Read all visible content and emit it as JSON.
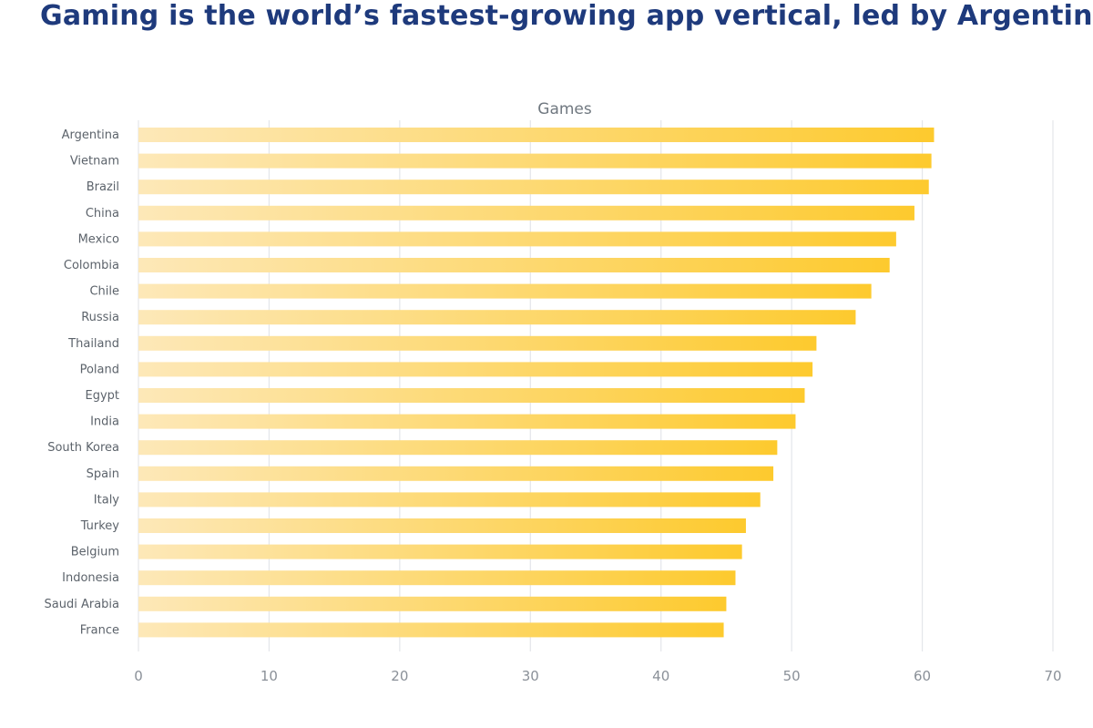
{
  "headline": "Gaming is the world’s fastest-growing app vertical, led by Argentina",
  "chart_data": {
    "type": "bar",
    "orientation": "horizontal",
    "title": "Games",
    "xlabel": "",
    "ylabel": "",
    "categories": [
      "Argentina",
      "Vietnam",
      "Brazil",
      "China",
      "Mexico",
      "Colombia",
      "Chile",
      "Russia",
      "Thailand",
      "Poland",
      "Egypt",
      "India",
      "South Korea",
      "Spain",
      "Italy",
      "Turkey",
      "Belgium",
      "Indonesia",
      "Saudi Arabia",
      "France"
    ],
    "values": [
      60.9,
      60.7,
      60.5,
      59.4,
      58.0,
      57.5,
      56.1,
      54.9,
      51.9,
      51.6,
      51.0,
      50.3,
      48.9,
      48.6,
      47.6,
      46.5,
      46.2,
      45.7,
      45.0,
      44.8
    ],
    "xlim": [
      0,
      70
    ],
    "xticks": [
      "0",
      "10",
      "20",
      "30",
      "40",
      "50",
      "60",
      "70"
    ],
    "grid": true,
    "legend": "none",
    "colors": {
      "bar_start": "#fde8b8",
      "bar_end": "#fdca2e",
      "headline": "#1e3a7c"
    }
  }
}
